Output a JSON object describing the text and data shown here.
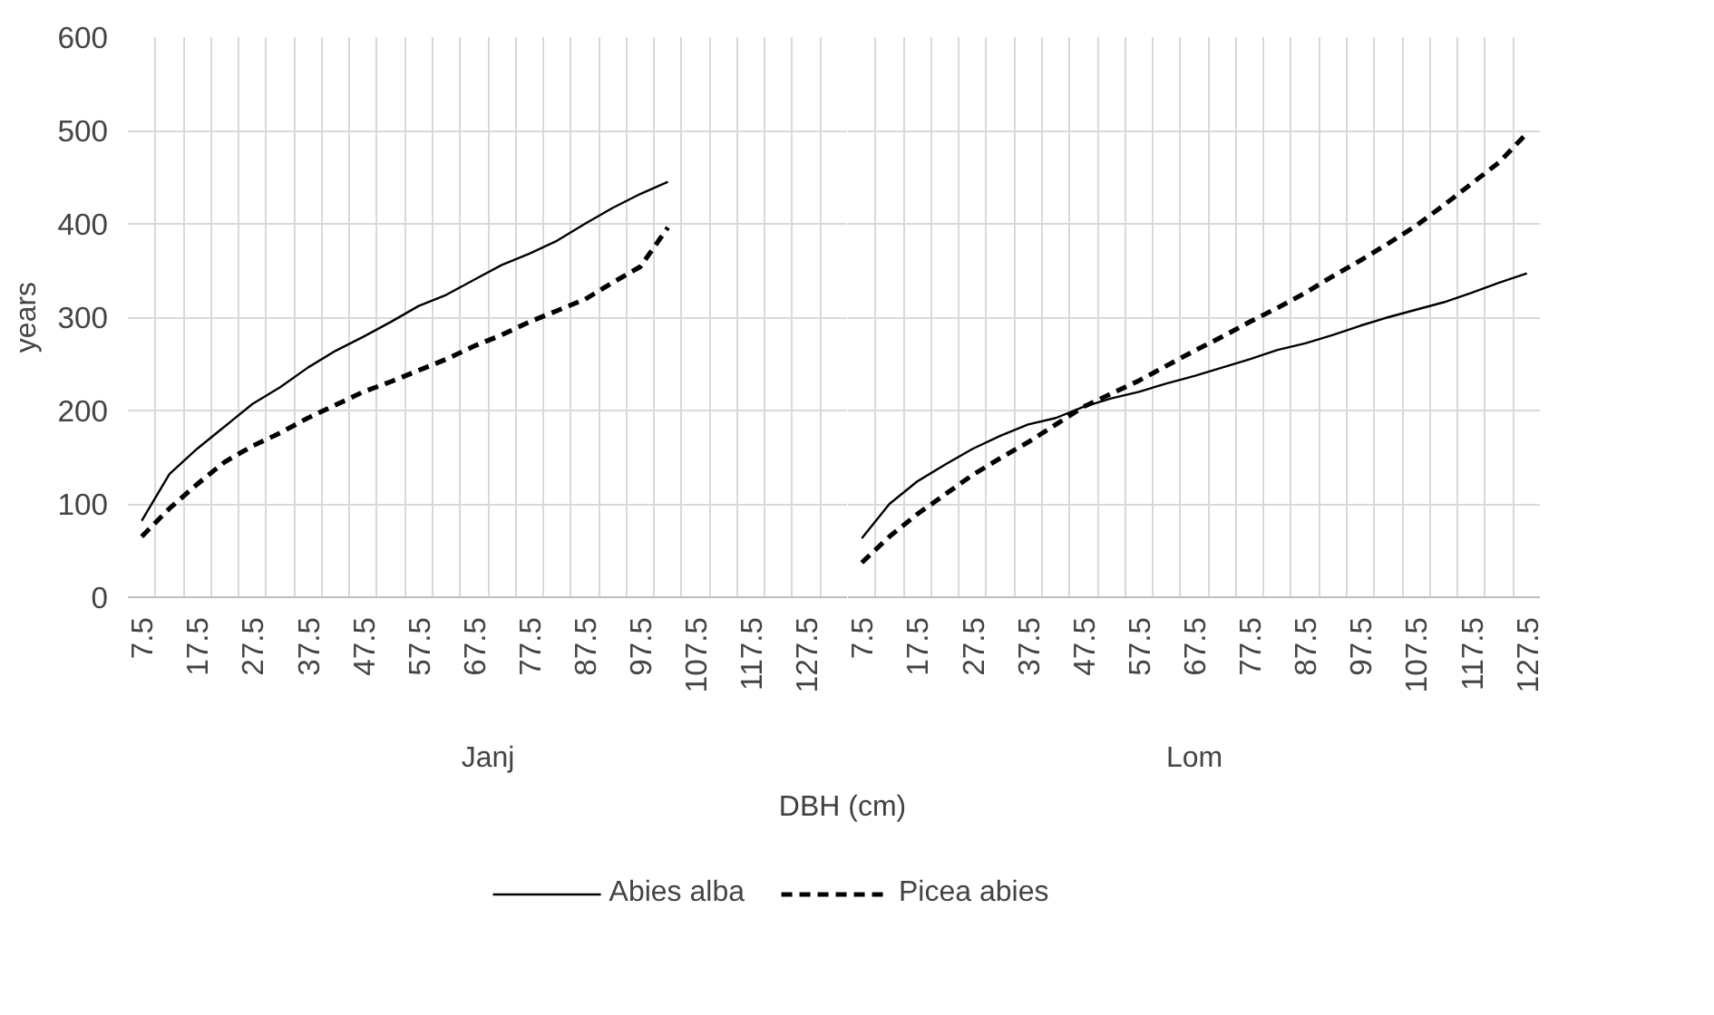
{
  "chart_data": [
    {
      "type": "line",
      "xlabel": "Janj",
      "ylabel": "years",
      "annotations": [
        "DBH (cm)"
      ],
      "ylim": [
        0,
        600
      ],
      "yticks": [
        0,
        100,
        200,
        300,
        400,
        500,
        600
      ],
      "grid": true,
      "legend": "bottom",
      "categories": [
        "7.5",
        null,
        "17.5",
        null,
        "27.5",
        null,
        "37.5",
        null,
        "47.5",
        null,
        "57.5",
        null,
        "67.5",
        null,
        "77.5",
        null,
        "87.5",
        null,
        "97.5",
        null,
        "107.5",
        null,
        "117.5",
        null,
        "127.5",
        null
      ],
      "series": [
        {
          "name": "Abies alba",
          "color": "#000000",
          "line_style": "solid",
          "values": [
            82,
            132,
            159,
            183,
            207,
            225,
            246,
            264,
            279,
            295,
            312,
            324,
            340,
            356,
            368,
            382,
            400,
            417,
            432,
            445,
            null,
            null,
            null,
            null,
            null,
            null
          ]
        },
        {
          "name": "Picea abies",
          "color": "#000000",
          "line_style": "dashed",
          "values": [
            65,
            95,
            121,
            145,
            162,
            176,
            192,
            206,
            220,
            231,
            243,
            255,
            269,
            281,
            295,
            307,
            319,
            337,
            354,
            396,
            null,
            null,
            null,
            null,
            null,
            null
          ]
        }
      ]
    },
    {
      "type": "line",
      "xlabel": "Lom",
      "ylim": [
        0,
        600
      ],
      "yticks": [
        0,
        100,
        200,
        300,
        400,
        500,
        600
      ],
      "grid": true,
      "tick_labels": "x",
      "categories": [
        "7.5",
        null,
        "17.5",
        null,
        "27.5",
        null,
        "37.5",
        null,
        "47.5",
        null,
        "57.5",
        null,
        "67.5",
        null,
        "77.5",
        null,
        "87.5",
        null,
        "97.5",
        null,
        "107.5",
        null,
        "117.5",
        null,
        "127.5"
      ],
      "series": [
        {
          "color": "#000000",
          "line_style": "solid",
          "values": [
            63,
            100,
            124,
            142,
            159,
            173,
            185,
            192,
            204,
            213,
            220,
            229,
            237,
            246,
            255,
            265,
            272,
            281,
            291,
            300,
            308,
            316,
            326,
            337,
            347
          ]
        },
        {
          "color": "#000000",
          "line_style": "dashed",
          "values": [
            37,
            65,
            89,
            110,
            131,
            149,
            166,
            185,
            204,
            218,
            232,
            248,
            264,
            279,
            295,
            310,
            326,
            344,
            361,
            379,
            398,
            420,
            443,
            466,
            497
          ]
        }
      ]
    }
  ]
}
